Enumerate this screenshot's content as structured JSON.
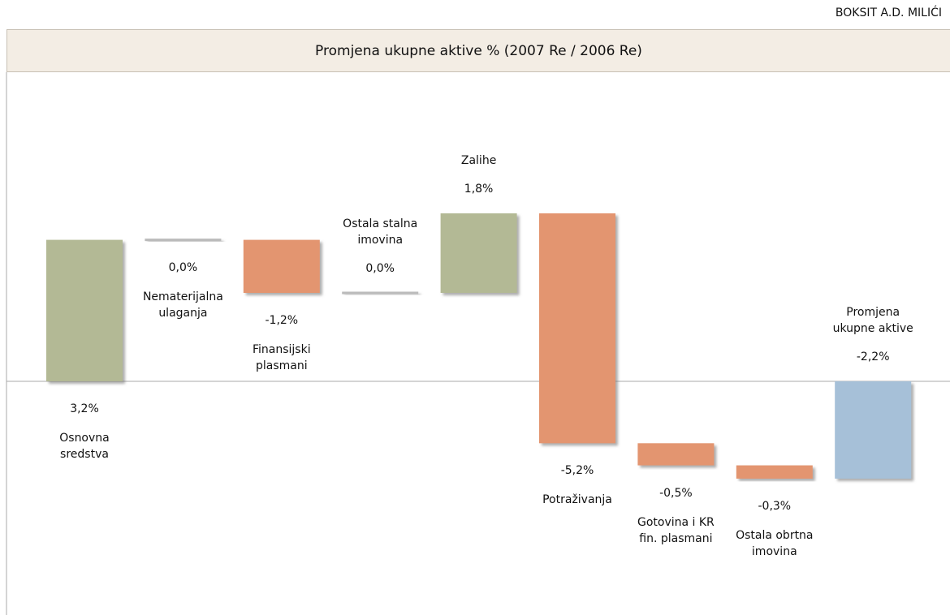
{
  "company": "BOKSIT A.D. MILIĆI",
  "chart_data": {
    "type": "waterfall",
    "title": "Promjena ukupne aktive % (2007 Re / 2006 Re)",
    "categories": [
      "Osnovna sredstva",
      "Nematerijalna ulaganja",
      "Finansijski plasmani",
      "Ostala stalna imovina",
      "Zalihe",
      "Potraživanja",
      "Gotovina i KR fin. plasmani",
      "Ostala obrtna imovina",
      "Promjena ukupne aktive"
    ],
    "values": [
      3.2,
      0.0,
      -1.2,
      0.0,
      1.8,
      -5.2,
      -0.5,
      -0.3,
      -2.2
    ],
    "value_labels": [
      "3,2%",
      "0,0%",
      "-1,2%",
      "0,0%",
      "1,8%",
      "-5,2%",
      "-0,5%",
      "-0,3%",
      "-2,2%"
    ],
    "colors": {
      "increase": "#b3b995",
      "decrease": "#e3956f",
      "total": "#a6c0d8"
    }
  }
}
